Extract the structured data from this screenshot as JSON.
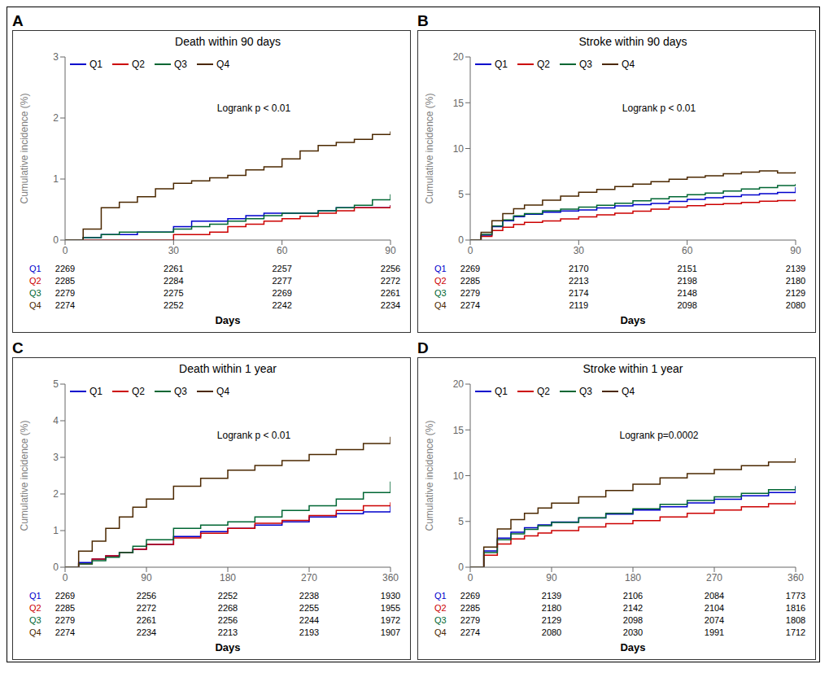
{
  "chart_data": [
    {
      "type": "step",
      "panel_label": "A",
      "title": "Death within 90 days",
      "x_label": "Days",
      "y_label": "Cumulative incidence (%)",
      "xlim": [
        0,
        90
      ],
      "xticks": [
        0,
        30,
        60,
        90
      ],
      "ylim": [
        0,
        3
      ],
      "yticks": [
        0,
        1,
        2,
        3
      ],
      "legend": "upper left",
      "grid": false,
      "annotation": "Logrank p < 0.01",
      "series": [
        {
          "name": "Q1",
          "color": "#0000CC",
          "x": [
            0,
            5,
            10,
            15,
            20,
            25,
            30,
            35,
            40,
            45,
            50,
            55,
            60,
            65,
            70,
            75,
            80,
            85,
            90
          ],
          "values": [
            0,
            0.04,
            0.09,
            0.09,
            0.13,
            0.13,
            0.22,
            0.31,
            0.31,
            0.35,
            0.4,
            0.44,
            0.44,
            0.44,
            0.48,
            0.53,
            0.53,
            0.53,
            0.57
          ]
        },
        {
          "name": "Q2",
          "color": "#CC0000",
          "x": [
            0,
            5,
            10,
            15,
            20,
            25,
            30,
            35,
            40,
            45,
            50,
            55,
            60,
            65,
            70,
            75,
            80,
            85,
            90
          ],
          "values": [
            0,
            0.0,
            0.0,
            0.0,
            0.0,
            0.0,
            0.09,
            0.09,
            0.13,
            0.22,
            0.26,
            0.31,
            0.35,
            0.39,
            0.44,
            0.48,
            0.53,
            0.53,
            0.57
          ]
        },
        {
          "name": "Q3",
          "color": "#006633",
          "x": [
            0,
            5,
            10,
            15,
            20,
            25,
            30,
            35,
            40,
            45,
            50,
            55,
            60,
            65,
            70,
            75,
            80,
            85,
            90
          ],
          "values": [
            0,
            0.04,
            0.09,
            0.13,
            0.13,
            0.13,
            0.18,
            0.22,
            0.26,
            0.31,
            0.35,
            0.4,
            0.44,
            0.44,
            0.48,
            0.53,
            0.57,
            0.66,
            0.75
          ]
        },
        {
          "name": "Q4",
          "color": "#4B2800",
          "x": [
            0,
            5,
            10,
            15,
            20,
            25,
            30,
            35,
            40,
            45,
            50,
            55,
            60,
            65,
            70,
            75,
            80,
            85,
            90
          ],
          "values": [
            0,
            0.18,
            0.53,
            0.62,
            0.71,
            0.84,
            0.93,
            0.97,
            1.02,
            1.06,
            1.15,
            1.2,
            1.33,
            1.46,
            1.55,
            1.6,
            1.65,
            1.73,
            1.78
          ]
        }
      ],
      "at_risk": {
        "x": [
          0,
          30,
          60,
          90
        ],
        "rows": [
          {
            "name": "Q1",
            "color": "#0000CC",
            "values": [
              2269,
              2261,
              2257,
              2256
            ]
          },
          {
            "name": "Q2",
            "color": "#CC0000",
            "values": [
              2285,
              2284,
              2277,
              2272
            ]
          },
          {
            "name": "Q3",
            "color": "#006633",
            "values": [
              2279,
              2275,
              2269,
              2261
            ]
          },
          {
            "name": "Q4",
            "color": "#4B2800",
            "values": [
              2274,
              2252,
              2242,
              2234
            ]
          }
        ]
      }
    },
    {
      "type": "step",
      "panel_label": "B",
      "title": "Stroke within 90 days",
      "x_label": "Days",
      "y_label": "Cumulative incidence (%)",
      "xlim": [
        0,
        90
      ],
      "xticks": [
        0,
        30,
        60,
        90
      ],
      "ylim": [
        0,
        20
      ],
      "yticks": [
        0,
        5,
        10,
        15,
        20
      ],
      "legend": "upper left",
      "grid": false,
      "annotation": "Logrank p < 0.01",
      "series": [
        {
          "name": "Q1",
          "color": "#0000CC",
          "x": [
            0,
            3,
            6,
            9,
            12,
            15,
            20,
            25,
            30,
            35,
            40,
            45,
            50,
            55,
            60,
            65,
            70,
            75,
            80,
            85,
            90
          ],
          "values": [
            0,
            0.53,
            1.46,
            2.11,
            2.55,
            2.82,
            3.04,
            3.17,
            3.3,
            3.52,
            3.74,
            3.87,
            4.0,
            4.22,
            4.44,
            4.62,
            4.75,
            4.93,
            5.06,
            5.19,
            5.77
          ]
        },
        {
          "name": "Q2",
          "color": "#CC0000",
          "x": [
            0,
            3,
            6,
            9,
            12,
            15,
            20,
            25,
            30,
            35,
            40,
            45,
            50,
            55,
            60,
            65,
            70,
            75,
            80,
            85,
            90
          ],
          "values": [
            0,
            0.4,
            1.05,
            1.4,
            1.71,
            1.93,
            2.1,
            2.32,
            2.54,
            2.76,
            2.93,
            3.15,
            3.37,
            3.59,
            3.76,
            3.89,
            3.98,
            4.11,
            4.24,
            4.32,
            4.45
          ]
        },
        {
          "name": "Q3",
          "color": "#006633",
          "x": [
            0,
            3,
            6,
            9,
            12,
            15,
            20,
            25,
            30,
            35,
            40,
            45,
            50,
            55,
            60,
            65,
            70,
            75,
            80,
            85,
            90
          ],
          "values": [
            0,
            0.62,
            1.54,
            2.2,
            2.64,
            2.9,
            3.2,
            3.37,
            3.59,
            3.81,
            4.03,
            4.3,
            4.52,
            4.74,
            4.96,
            5.13,
            5.35,
            5.57,
            5.74,
            5.96,
            6.14
          ]
        },
        {
          "name": "Q4",
          "color": "#4B2800",
          "x": [
            0,
            3,
            6,
            9,
            12,
            15,
            20,
            25,
            30,
            35,
            40,
            45,
            50,
            55,
            60,
            65,
            70,
            75,
            80,
            85,
            90
          ],
          "values": [
            0,
            0.84,
            2.11,
            2.9,
            3.43,
            3.83,
            4.36,
            4.8,
            5.23,
            5.54,
            5.85,
            6.11,
            6.38,
            6.64,
            6.86,
            7.03,
            7.25,
            7.43,
            7.56,
            7.34,
            7.47
          ]
        }
      ],
      "at_risk": {
        "x": [
          0,
          30,
          60,
          90
        ],
        "rows": [
          {
            "name": "Q1",
            "color": "#0000CC",
            "values": [
              2269,
              2170,
              2151,
              2139
            ]
          },
          {
            "name": "Q2",
            "color": "#CC0000",
            "values": [
              2285,
              2213,
              2198,
              2180
            ]
          },
          {
            "name": "Q3",
            "color": "#006633",
            "values": [
              2279,
              2174,
              2148,
              2129
            ]
          },
          {
            "name": "Q4",
            "color": "#4B2800",
            "values": [
              2274,
              2119,
              2098,
              2080
            ]
          }
        ]
      }
    },
    {
      "type": "step",
      "panel_label": "C",
      "title": "Death within 1 year",
      "x_label": "Days",
      "y_label": "Cumulative incidence (%)",
      "xlim": [
        0,
        360
      ],
      "xticks": [
        0,
        90,
        180,
        270,
        360
      ],
      "ylim": [
        0,
        5
      ],
      "yticks": [
        0,
        1,
        2,
        3,
        4,
        5
      ],
      "legend": "upper left",
      "grid": false,
      "annotation": "Logrank p < 0.01",
      "series": [
        {
          "name": "Q1",
          "color": "#0000CC",
          "x": [
            0,
            15,
            30,
            45,
            60,
            75,
            90,
            120,
            150,
            180,
            210,
            240,
            270,
            300,
            330,
            360
          ],
          "values": [
            0,
            0.13,
            0.22,
            0.31,
            0.4,
            0.49,
            0.62,
            0.84,
            0.97,
            1.06,
            1.15,
            1.24,
            1.37,
            1.46,
            1.51,
            1.68
          ]
        },
        {
          "name": "Q2",
          "color": "#CC0000",
          "x": [
            0,
            15,
            30,
            45,
            60,
            75,
            90,
            120,
            150,
            180,
            210,
            240,
            270,
            300,
            330,
            360
          ],
          "values": [
            0,
            0.09,
            0.22,
            0.31,
            0.4,
            0.49,
            0.62,
            0.8,
            0.93,
            1.06,
            1.2,
            1.28,
            1.41,
            1.55,
            1.68,
            1.77
          ]
        },
        {
          "name": "Q3",
          "color": "#006633",
          "x": [
            0,
            15,
            30,
            45,
            60,
            75,
            90,
            120,
            150,
            180,
            210,
            240,
            270,
            300,
            330,
            360
          ],
          "values": [
            0,
            0.09,
            0.18,
            0.27,
            0.4,
            0.57,
            0.75,
            1.06,
            1.15,
            1.24,
            1.37,
            1.55,
            1.68,
            1.86,
            2.04,
            2.34
          ]
        },
        {
          "name": "Q4",
          "color": "#4B2800",
          "x": [
            0,
            15,
            30,
            45,
            60,
            75,
            90,
            120,
            150,
            180,
            210,
            240,
            270,
            300,
            330,
            360
          ],
          "values": [
            0,
            0.44,
            0.71,
            1.06,
            1.37,
            1.64,
            1.86,
            2.21,
            2.43,
            2.65,
            2.78,
            2.91,
            3.08,
            3.21,
            3.38,
            3.56
          ]
        }
      ],
      "at_risk": {
        "x": [
          0,
          90,
          180,
          270,
          360
        ],
        "rows": [
          {
            "name": "Q1",
            "color": "#0000CC",
            "values": [
              2269,
              2256,
              2252,
              2238,
              1930
            ]
          },
          {
            "name": "Q2",
            "color": "#CC0000",
            "values": [
              2285,
              2272,
              2268,
              2255,
              1955
            ]
          },
          {
            "name": "Q3",
            "color": "#006633",
            "values": [
              2279,
              2261,
              2256,
              2244,
              1972
            ]
          },
          {
            "name": "Q4",
            "color": "#4B2800",
            "values": [
              2274,
              2234,
              2213,
              2193,
              1907
            ]
          }
        ]
      }
    },
    {
      "type": "step",
      "panel_label": "D",
      "title": "Stroke within 1 year",
      "x_label": "Days",
      "y_label": "Cumulative incidence (%)",
      "xlim": [
        0,
        360
      ],
      "xticks": [
        0,
        90,
        180,
        270,
        360
      ],
      "ylim": [
        0,
        20
      ],
      "yticks": [
        0,
        5,
        10,
        15,
        20
      ],
      "legend": "upper left",
      "grid": false,
      "annotation": "Logrank p=0.0002",
      "series": [
        {
          "name": "Q1",
          "color": "#0000CC",
          "x": [
            0,
            15,
            30,
            45,
            60,
            75,
            90,
            120,
            150,
            180,
            210,
            240,
            270,
            300,
            330,
            360
          ],
          "values": [
            0,
            1.77,
            3.17,
            3.83,
            4.31,
            4.62,
            4.93,
            5.37,
            5.81,
            6.24,
            6.59,
            7.03,
            7.42,
            7.81,
            8.15,
            8.85
          ]
        },
        {
          "name": "Q2",
          "color": "#CC0000",
          "x": [
            0,
            15,
            30,
            45,
            60,
            75,
            90,
            120,
            150,
            180,
            210,
            240,
            270,
            300,
            330,
            360
          ],
          "values": [
            0,
            1.31,
            2.54,
            3.08,
            3.43,
            3.74,
            4.0,
            4.4,
            4.75,
            5.1,
            5.5,
            5.9,
            6.24,
            6.59,
            6.94,
            7.25
          ]
        },
        {
          "name": "Q3",
          "color": "#006633",
          "x": [
            0,
            15,
            30,
            45,
            60,
            75,
            90,
            120,
            150,
            180,
            210,
            240,
            270,
            300,
            330,
            360
          ],
          "values": [
            0,
            1.59,
            2.99,
            3.65,
            4.13,
            4.53,
            4.88,
            5.41,
            5.9,
            6.38,
            6.86,
            7.29,
            7.68,
            8.07,
            8.46,
            8.85
          ]
        },
        {
          "name": "Q4",
          "color": "#4B2800",
          "x": [
            0,
            15,
            30,
            45,
            60,
            75,
            90,
            120,
            150,
            180,
            210,
            240,
            270,
            300,
            330,
            360
          ],
          "values": [
            0,
            2.21,
            4.18,
            5.19,
            5.9,
            6.47,
            6.99,
            7.68,
            8.37,
            9.06,
            9.75,
            10.22,
            10.66,
            11.09,
            11.48,
            11.92
          ]
        }
      ],
      "at_risk": {
        "x": [
          0,
          90,
          180,
          270,
          360
        ],
        "rows": [
          {
            "name": "Q1",
            "color": "#0000CC",
            "values": [
              2269,
              2139,
              2106,
              2084,
              1773
            ]
          },
          {
            "name": "Q2",
            "color": "#CC0000",
            "values": [
              2285,
              2180,
              2142,
              2104,
              1816
            ]
          },
          {
            "name": "Q3",
            "color": "#006633",
            "values": [
              2279,
              2129,
              2098,
              2074,
              1808
            ]
          },
          {
            "name": "Q4",
            "color": "#4B2800",
            "values": [
              2274,
              2080,
              2030,
              1991,
              1712
            ]
          }
        ]
      }
    }
  ]
}
